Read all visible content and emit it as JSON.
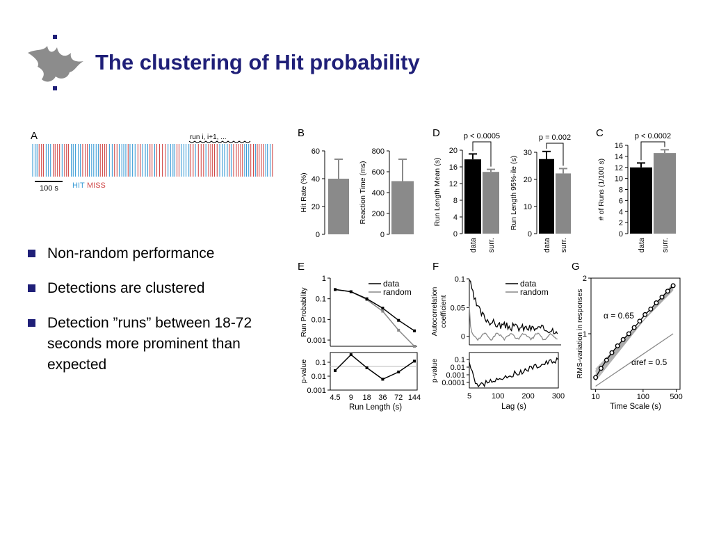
{
  "slide": {
    "title": "The clustering of Hit probability",
    "bullets": [
      "Non-random performance",
      "Detections are clustered",
      "Detection ”runs” between 18-72 seconds more prominent than expected"
    ]
  },
  "colors": {
    "title": "#1f1f78",
    "hit": "#3a9bd5",
    "miss": "#d04a4a",
    "data": "#000000",
    "surrogate": "#888888"
  },
  "chart_data": [
    {
      "panel": "A",
      "type": "raster",
      "annotation": "run i, i+1, ...",
      "scale_bar": "100 s",
      "legend": [
        {
          "name": "HIT",
          "color": "#3a9bd5"
        },
        {
          "name": "MISS",
          "color": "#d04a4a"
        }
      ]
    },
    {
      "panel": "B",
      "type": "bar",
      "subplots": [
        {
          "ylabel": "Hit Rate (%)",
          "ylim": [
            0,
            60
          ],
          "yticks": [
            "0",
            "20",
            "40",
            "60"
          ],
          "value": 40,
          "error": 14
        },
        {
          "ylabel": "Reaction Time (ms)",
          "ylim": [
            0,
            800
          ],
          "yticks": [
            "0",
            "200",
            "400",
            "600",
            "800"
          ],
          "value": 510,
          "error": 210
        }
      ]
    },
    {
      "panel": "D",
      "type": "bar",
      "subplots": [
        {
          "ylabel": "Run Length Mean (s)",
          "ylim": [
            0,
            20
          ],
          "yticks": [
            "0",
            "4",
            "8",
            "12",
            "16",
            "20"
          ],
          "categories": [
            "data",
            "surr."
          ],
          "values": [
            17.8,
            14.8
          ],
          "errors": [
            1.3,
            0.6
          ],
          "pvalue": "p < 0.0005"
        },
        {
          "ylabel": "Run Length 95%-ile (s)",
          "ylim": [
            0,
            30
          ],
          "yticks": [
            "0",
            "10",
            "20",
            "30"
          ],
          "categories": [
            "data",
            "surr."
          ],
          "values": [
            27.5,
            22.2
          ],
          "errors": [
            2.8,
            1.8
          ],
          "pvalue": "p = 0.002"
        }
      ]
    },
    {
      "panel": "C",
      "type": "bar",
      "subplots": [
        {
          "ylabel": "# of Runs (1/100 s)",
          "ylim": [
            0,
            16
          ],
          "yticks": [
            "0",
            "2",
            "4",
            "6",
            "8",
            "10",
            "12",
            "14",
            "16"
          ],
          "categories": [
            "data",
            "surr."
          ],
          "values": [
            12,
            14.6
          ],
          "errors": [
            0.8,
            0.6
          ],
          "pvalue": "p < 0.0002"
        }
      ]
    },
    {
      "panel": "E",
      "type": "line",
      "x": [
        4.5,
        9,
        18,
        36,
        72,
        144
      ],
      "xticklabels": [
        "4.5",
        "9",
        "18",
        "36",
        "72",
        "144"
      ],
      "xlabel": "Run Length (s)",
      "top": {
        "ylabel": "Run Probability",
        "yscale": "log",
        "ylim": [
          0.0005,
          1
        ],
        "yticks": [
          "1",
          "0.1",
          "0.01",
          "0.001"
        ],
        "series": [
          {
            "name": "data",
            "values": [
              0.28,
              0.22,
              0.1,
              0.035,
              0.009,
              0.0028
            ]
          },
          {
            "name": "random",
            "values": [
              0.28,
              0.22,
              0.09,
              0.025,
              0.003,
              0.0005
            ]
          }
        ]
      },
      "bottom": {
        "ylabel": "p-value",
        "yscale": "log",
        "ylim": [
          0.001,
          0.5
        ],
        "yticks": [
          "0.1",
          "0.01",
          "0.001"
        ],
        "values": [
          0.025,
          0.35,
          0.04,
          0.006,
          0.02,
          0.12
        ]
      }
    },
    {
      "panel": "F",
      "type": "line",
      "xlabel": "Lag (s)",
      "xlim": [
        5,
        300
      ],
      "xticklabels": [
        "5",
        "100",
        "200",
        "300"
      ],
      "top": {
        "ylabel": "Autocorrelation coefficient",
        "ylim": [
          -0.015,
          0.1
        ],
        "yticks": [
          "0.1",
          "0.05",
          "0"
        ],
        "series": [
          {
            "name": "data"
          },
          {
            "name": "random"
          }
        ]
      },
      "bottom": {
        "ylabel": "p-value",
        "yticks": [
          "0.1",
          "0.01",
          "0.001",
          "0.0001"
        ]
      }
    },
    {
      "panel": "G",
      "type": "scatter",
      "xlabel": "Time Scale (s)",
      "ylabel": "RMS-variation in responses",
      "xscale": "log",
      "xlim": [
        10,
        500
      ],
      "xticklabels": [
        "10",
        "100",
        "500"
      ],
      "yscale": "log",
      "ylim": [
        0.5,
        2
      ],
      "yticklabels": [
        "1",
        "2"
      ],
      "x": [
        10,
        13,
        17,
        22,
        29,
        38,
        50,
        65,
        85,
        110,
        145,
        190,
        250,
        330,
        430
      ],
      "y": [
        0.58,
        0.65,
        0.72,
        0.79,
        0.86,
        0.93,
        1.0,
        1.08,
        1.17,
        1.27,
        1.36,
        1.47,
        1.58,
        1.7,
        1.82
      ],
      "fit_label": "α = 0.65",
      "ref_label": "αref = 0.5"
    }
  ]
}
